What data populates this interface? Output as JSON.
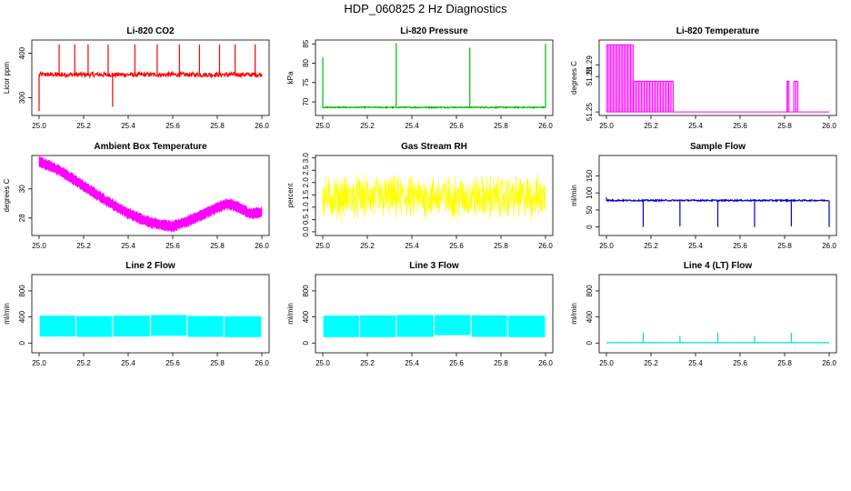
{
  "title": "HDP_060825 2 Hz Diagnostics",
  "x_ticks": [
    "25.0",
    "25.2",
    "25.4",
    "25.6",
    "25.8",
    "26.0"
  ],
  "chart_data": [
    {
      "type": "line",
      "title": "Li-820 CO2",
      "xlabel": "",
      "ylabel": "Licor ppm",
      "color": "#ff0000",
      "xlim": [
        25.0,
        26.0
      ],
      "ylim": [
        260,
        430
      ],
      "yticks": [
        300,
        400
      ],
      "ytick_labels": [
        "300",
        "400"
      ],
      "baseline": 352,
      "noise": 5,
      "spikes": [
        {
          "x": 25.0,
          "y": 270
        },
        {
          "x": 25.09,
          "y": 420
        },
        {
          "x": 25.16,
          "y": 420
        },
        {
          "x": 25.22,
          "y": 420
        },
        {
          "x": 25.31,
          "y": 420
        },
        {
          "x": 25.33,
          "y": 280
        },
        {
          "x": 25.43,
          "y": 420
        },
        {
          "x": 25.53,
          "y": 420
        },
        {
          "x": 25.63,
          "y": 420
        },
        {
          "x": 25.72,
          "y": 420
        },
        {
          "x": 25.81,
          "y": 420
        },
        {
          "x": 25.88,
          "y": 420
        },
        {
          "x": 25.97,
          "y": 420
        }
      ]
    },
    {
      "type": "line",
      "title": "Li-820 Pressure",
      "xlabel": "",
      "ylabel": "kPa",
      "color": "#00bb00",
      "xlim": [
        25.0,
        26.0
      ],
      "ylim": [
        66.5,
        86
      ],
      "yticks": [
        70,
        75,
        80,
        85
      ],
      "ytick_labels": [
        "70",
        "75",
        "80",
        "85"
      ],
      "baseline": 68.6,
      "noise": 0.15,
      "spikes": [
        {
          "x": 25.0,
          "y": 81.5
        },
        {
          "x": 25.33,
          "y": 85.2
        },
        {
          "x": 25.66,
          "y": 84.0
        },
        {
          "x": 26.0,
          "y": 85.0
        }
      ]
    },
    {
      "type": "line",
      "title": "Li-820 Temperature",
      "xlabel": "",
      "ylabel": "degrees C",
      "color": "#ff00ff",
      "xlim": [
        25.0,
        26.0
      ],
      "ylim": [
        51.247,
        51.311
      ],
      "yticks": [
        51.25,
        51.28,
        51.29
      ],
      "ytick_labels": [
        "51.25",
        "51.28",
        "51.29"
      ],
      "levels": [
        51.25,
        51.276,
        51.307
      ],
      "blocks": [
        {
          "x0": 25.0,
          "x1": 25.12,
          "low": 51.25,
          "high": 51.307
        },
        {
          "x0": 25.12,
          "x1": 25.28,
          "low": 51.25,
          "high": 51.276
        },
        {
          "x0": 25.28,
          "x1": 25.3,
          "low": 51.25,
          "high": 51.276
        },
        {
          "x0": 25.81,
          "x1": 25.82,
          "low": 51.25,
          "high": 51.276
        },
        {
          "x0": 25.84,
          "x1": 25.86,
          "low": 51.25,
          "high": 51.276
        }
      ]
    },
    {
      "type": "line",
      "title": "Ambient Box Temperature",
      "xlabel": "",
      "ylabel": "degrees C",
      "color": "#ff00ff",
      "xlim": [
        25.0,
        26.0
      ],
      "ylim": [
        26.8,
        32.3
      ],
      "yticks": [
        28,
        30
      ],
      "ytick_labels": [
        "28",
        "30"
      ],
      "path": [
        [
          25.0,
          31.9
        ],
        [
          25.1,
          31.2
        ],
        [
          25.2,
          30.2
        ],
        [
          25.3,
          29.2
        ],
        [
          25.4,
          28.3
        ],
        [
          25.5,
          27.7
        ],
        [
          25.6,
          27.4
        ],
        [
          25.7,
          28.0
        ],
        [
          25.8,
          28.7
        ],
        [
          25.85,
          29.0
        ],
        [
          25.9,
          28.7
        ],
        [
          25.95,
          28.3
        ],
        [
          26.0,
          28.4
        ]
      ],
      "band": 0.3
    },
    {
      "type": "line",
      "title": "Gas Stream RH",
      "xlabel": "",
      "ylabel": "percent",
      "color": "#ffff00",
      "xlim": [
        25.0,
        26.0
      ],
      "ylim": [
        -0.15,
        3.1
      ],
      "yticks": [
        0,
        0.5,
        1,
        1.5,
        2,
        2.5,
        3
      ],
      "ytick_labels": [
        "0.0",
        "0.5",
        "1.0",
        "1.5",
        "2.0",
        "2.5",
        "3.0"
      ],
      "mean": 1.4,
      "noise": 0.7,
      "min": 0.0,
      "max": 2.9
    },
    {
      "type": "line",
      "title": "Sample Flow",
      "xlabel": "",
      "ylabel": "ml/min",
      "color": "#0000cc",
      "xlim": [
        25.0,
        26.0
      ],
      "ylim": [
        -25,
        210
      ],
      "yticks": [
        0,
        50,
        100,
        150
      ],
      "ytick_labels": [
        "0",
        "50",
        "100",
        "150"
      ],
      "baseline": 78,
      "noise": 2,
      "spikes": [
        {
          "x": 25.0,
          "y": 87
        },
        {
          "x": 25.165,
          "y": 0
        },
        {
          "x": 25.33,
          "y": 2
        },
        {
          "x": 25.5,
          "y": 0
        },
        {
          "x": 25.665,
          "y": 0
        },
        {
          "x": 25.83,
          "y": 2
        },
        {
          "x": 26.0,
          "y": 0
        }
      ]
    },
    {
      "type": "area",
      "title": "Line 2 Flow",
      "xlabel": "",
      "ylabel": "ml/min",
      "color": "#00ffff",
      "xlim": [
        25.0,
        26.0
      ],
      "ylim": [
        -150,
        1050
      ],
      "yticks": [
        0,
        400,
        800
      ],
      "ytick_labels": [
        "0",
        "400",
        "800"
      ],
      "segments": [
        {
          "x0": 25.0,
          "x1": 25.165,
          "low": 100,
          "high": 420
        },
        {
          "x0": 25.165,
          "x1": 25.33,
          "low": 95,
          "high": 415
        },
        {
          "x0": 25.33,
          "x1": 25.5,
          "low": 100,
          "high": 420
        },
        {
          "x0": 25.5,
          "x1": 25.665,
          "low": 110,
          "high": 430
        },
        {
          "x0": 25.665,
          "x1": 25.83,
          "low": 95,
          "high": 415
        },
        {
          "x0": 25.83,
          "x1": 26.0,
          "low": 90,
          "high": 410
        }
      ]
    },
    {
      "type": "area",
      "title": "Line 3 Flow",
      "xlabel": "",
      "ylabel": "ml/min",
      "color": "#00ffff",
      "xlim": [
        25.0,
        26.0
      ],
      "ylim": [
        -150,
        1050
      ],
      "yticks": [
        0,
        400,
        800
      ],
      "ytick_labels": [
        "0",
        "400",
        "800"
      ],
      "segments": [
        {
          "x0": 25.0,
          "x1": 25.165,
          "low": 90,
          "high": 420
        },
        {
          "x0": 25.165,
          "x1": 25.33,
          "low": 90,
          "high": 425
        },
        {
          "x0": 25.33,
          "x1": 25.5,
          "low": 95,
          "high": 430
        },
        {
          "x0": 25.5,
          "x1": 25.665,
          "low": 120,
          "high": 430
        },
        {
          "x0": 25.665,
          "x1": 25.83,
          "low": 95,
          "high": 425
        },
        {
          "x0": 25.83,
          "x1": 26.0,
          "low": 90,
          "high": 420
        }
      ]
    },
    {
      "type": "line",
      "title": "Line 4 (LT) Flow",
      "xlabel": "",
      "ylabel": "ml/min",
      "color": "#00dddd",
      "xlim": [
        25.0,
        26.0
      ],
      "ylim": [
        -150,
        1050
      ],
      "yticks": [
        0,
        400,
        800
      ],
      "ytick_labels": [
        "0",
        "400",
        "800"
      ],
      "baseline": 5,
      "noise": 0,
      "spikes": [
        {
          "x": 25.165,
          "y": 160
        },
        {
          "x": 25.33,
          "y": 110
        },
        {
          "x": 25.5,
          "y": 160
        },
        {
          "x": 25.665,
          "y": 110
        },
        {
          "x": 25.83,
          "y": 160
        }
      ]
    }
  ]
}
